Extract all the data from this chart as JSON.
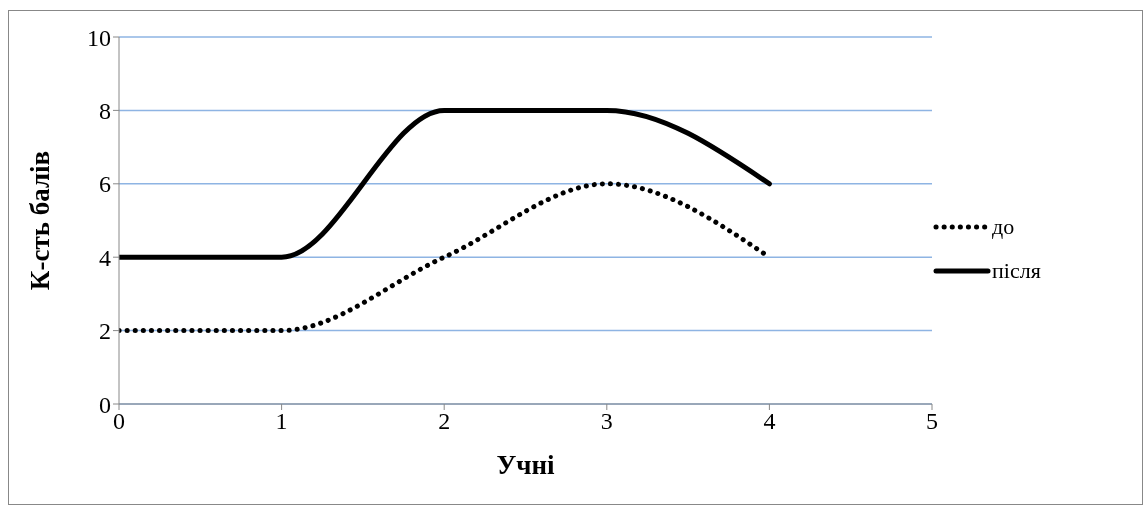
{
  "chart_data": {
    "type": "line",
    "xlabel": "Учні",
    "ylabel": "К-сть балів",
    "x": [
      0,
      1,
      2,
      3,
      4
    ],
    "series": [
      {
        "name": "до",
        "color": "#000000",
        "values": [
          2,
          2,
          4,
          6,
          4
        ],
        "line_style": "dotted"
      },
      {
        "name": "після",
        "color": "#000000",
        "values": [
          4,
          4,
          8,
          8,
          6
        ],
        "line_style": "solid"
      }
    ],
    "xlim": [
      0,
      5
    ],
    "xticks": [
      0,
      1,
      2,
      3,
      4,
      5
    ],
    "ylim": [
      0,
      10
    ],
    "yticks": [
      0,
      2,
      4,
      6,
      8,
      10
    ],
    "grid": "y",
    "legend": "right",
    "marker": "none"
  }
}
